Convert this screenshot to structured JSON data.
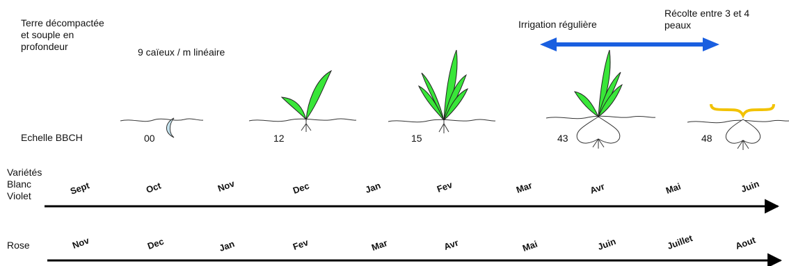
{
  "notes": {
    "soil": "Terre décompactée\net souple en\nprofondeur",
    "density": "9 caïeux / m linéaire",
    "irrigation": "Irrigation régulière",
    "harvest": "Récolte entre 3 et 4\npeaux"
  },
  "bbch": {
    "label": "Echelle BBCH",
    "stages": [
      "00",
      "12",
      "15",
      "43",
      "48"
    ]
  },
  "rows": [
    {
      "label": "Variétés\nBlanc\nViolet",
      "months": [
        "Sept",
        "Oct",
        "Nov",
        "Dec",
        "Jan",
        "Fev",
        "Mar",
        "Avr",
        "Mai",
        "Juin"
      ]
    },
    {
      "label": "Rose",
      "months": [
        "Nov",
        "Dec",
        "Jan",
        "Fev",
        "Mar",
        "Avr",
        "Mai",
        "Juin",
        "Juillet",
        "Aout"
      ]
    }
  ],
  "colors": {
    "leaf": "#39e639",
    "clove": "#c5e3ee",
    "irrigation_arrow": "#1a5fe0",
    "harvest_brace": "#f2c200",
    "axis": "#000000"
  }
}
